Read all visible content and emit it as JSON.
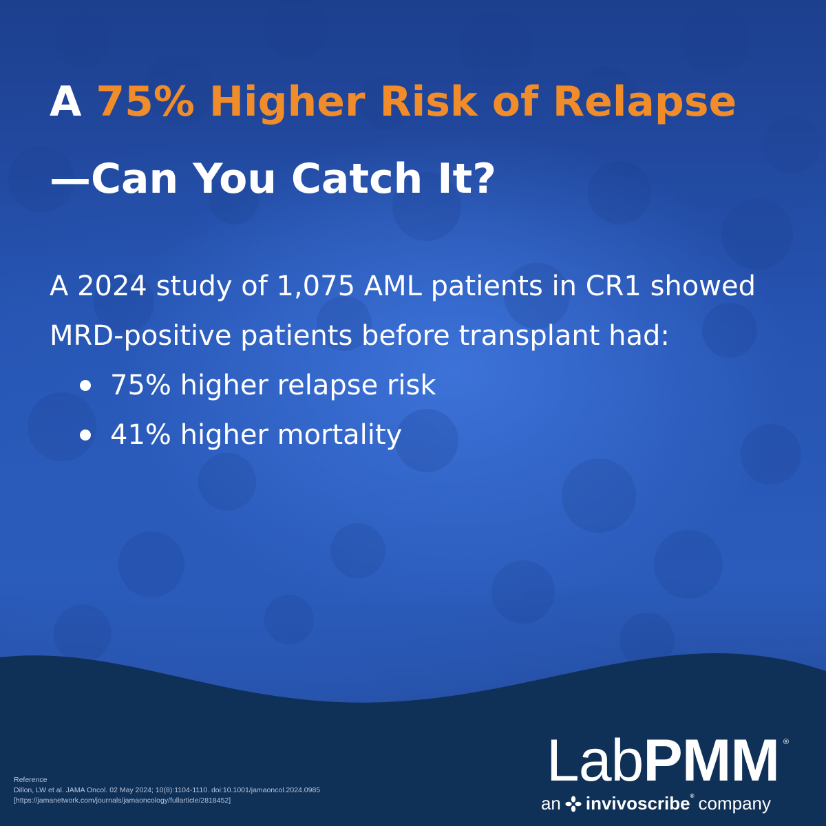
{
  "headline": {
    "prefix": "A ",
    "accent": "75% Higher Risk of Relapse",
    "line2": "—Can You Catch It?"
  },
  "body": {
    "paragraph": "A 2024 study of 1,075 AML patients in CR1 showed MRD-positive patients before transplant had:",
    "bullets": [
      "75% higher relapse risk",
      "41% higher mortality"
    ]
  },
  "reference": {
    "heading": "Reference",
    "citation": "Dillon, LW et al. JAMA Oncol. 02 May 2024; 10(8):1104-1110. doi:10.1001/jamaoncol.2024.0985",
    "url": "[https://jamanetwork.com/journals/jamaoncology/fullarticle/2818452]"
  },
  "logo": {
    "lab": "Lab",
    "pmm": "PMM",
    "registered": "®",
    "tagline_prefix": "an",
    "tagline_brand": "invivoscribe",
    "trademark": "®",
    "tagline_suffix": "company",
    "icon": "flower-icon"
  },
  "colors": {
    "accent": "#f08c2a",
    "background": "#2654b2",
    "footer": "#0f3057",
    "text": "#ffffff"
  }
}
